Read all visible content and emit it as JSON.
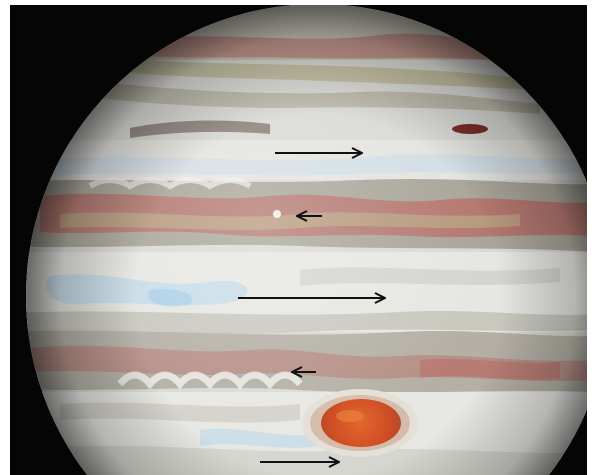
{
  "image": {
    "subject": "jupiter",
    "colors": {
      "space": "#050505",
      "border": "#ffffff",
      "planet_base": "#d9d9d5",
      "belt_red": "#b86a62",
      "belt_olive": "#b9b48a",
      "zone_blue": "#bcd8ea",
      "great_red_spot": "#d5542a",
      "arrow": "#111111"
    }
  },
  "arrows": [
    {
      "direction": "right",
      "band": "north-temperate"
    },
    {
      "direction": "left",
      "band": "north-equatorial-belt"
    },
    {
      "direction": "right",
      "band": "equatorial-zone"
    },
    {
      "direction": "left",
      "band": "south-equatorial-belt"
    },
    {
      "direction": "right",
      "band": "south-tropical-zone"
    }
  ]
}
